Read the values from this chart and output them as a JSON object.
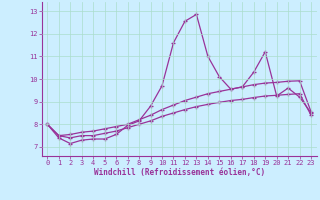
{
  "xlabel": "Windchill (Refroidissement éolien,°C)",
  "background_color": "#cceeff",
  "line_color": "#993399",
  "grid_color": "#aaddcc",
  "axis_color": "#660066",
  "xlim": [
    -0.5,
    23.5
  ],
  "ylim": [
    6.6,
    13.4
  ],
  "yticks": [
    7,
    8,
    9,
    10,
    11,
    12,
    13
  ],
  "xticks": [
    0,
    1,
    2,
    3,
    4,
    5,
    6,
    7,
    8,
    9,
    10,
    11,
    12,
    13,
    14,
    15,
    16,
    17,
    18,
    19,
    20,
    21,
    22,
    23
  ],
  "series1_x": [
    0,
    1,
    2,
    3,
    4,
    5,
    6,
    7,
    8,
    9,
    10,
    11,
    12,
    13,
    14,
    15,
    16,
    17,
    18,
    19,
    20,
    21,
    22,
    23
  ],
  "series1_y": [
    8.0,
    7.4,
    7.15,
    7.3,
    7.35,
    7.35,
    7.55,
    7.95,
    8.15,
    8.8,
    9.7,
    11.6,
    12.55,
    12.85,
    11.0,
    10.1,
    9.55,
    9.65,
    10.3,
    11.2,
    9.25,
    9.6,
    9.2,
    8.5
  ],
  "series2_x": [
    0,
    1,
    2,
    3,
    4,
    5,
    6,
    7,
    8,
    9,
    10,
    11,
    12,
    13,
    14,
    15,
    16,
    17,
    18,
    19,
    20,
    21,
    22,
    23
  ],
  "series2_y": [
    8.0,
    7.5,
    7.55,
    7.65,
    7.7,
    7.8,
    7.9,
    8.0,
    8.2,
    8.4,
    8.65,
    8.85,
    9.05,
    9.2,
    9.35,
    9.45,
    9.55,
    9.65,
    9.75,
    9.82,
    9.85,
    9.9,
    9.92,
    8.55
  ],
  "series3_x": [
    0,
    1,
    2,
    3,
    4,
    5,
    6,
    7,
    8,
    9,
    10,
    11,
    12,
    13,
    14,
    15,
    16,
    17,
    18,
    19,
    20,
    21,
    22,
    23
  ],
  "series3_y": [
    8.0,
    7.5,
    7.4,
    7.5,
    7.5,
    7.6,
    7.7,
    7.85,
    8.0,
    8.15,
    8.35,
    8.5,
    8.65,
    8.78,
    8.88,
    8.97,
    9.05,
    9.1,
    9.18,
    9.25,
    9.28,
    9.32,
    9.35,
    8.4
  ],
  "xlabel_fontsize": 5.5,
  "tick_fontsize": 5,
  "marker_size": 3,
  "linewidth": 0.9
}
